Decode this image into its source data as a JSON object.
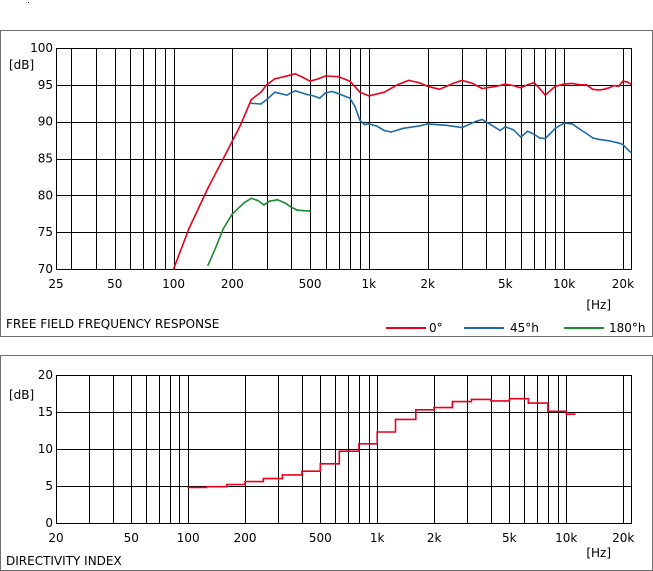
{
  "colors": {
    "red": "#e8001c",
    "blue": "#1e6aa8",
    "green": "#1a8a2e",
    "grid": "#000000",
    "frame": "#6e6e6e"
  },
  "chart_data": [
    {
      "type": "line",
      "title": "FREE FIELD FREQUENCY RESPONSE",
      "xlabel": "[Hz]",
      "ylabel": "[dB]",
      "xscale": "log",
      "xlim": [
        25,
        22000
      ],
      "ylim": [
        70,
        100
      ],
      "x_ticks": [
        25,
        50,
        100,
        200,
        500,
        1000,
        2000,
        5000,
        10000,
        20000
      ],
      "x_tick_labels": [
        "25",
        "50",
        "100",
        "200",
        "500",
        "1k",
        "2k",
        "5k",
        "10k",
        "20k"
      ],
      "y_ticks": [
        70,
        75,
        80,
        85,
        90,
        95,
        100
      ],
      "y_tick_labels": [
        "70",
        "75",
        "80",
        "85",
        "90",
        "95",
        "100"
      ],
      "grid": true,
      "legend_position": "bottom-right",
      "series": [
        {
          "name": "0°",
          "color": "#e8001c",
          "points": [
            [
              100,
              70
            ],
            [
              120,
              75.5
            ],
            [
              150,
              81
            ],
            [
              180,
              85
            ],
            [
              220,
              89.5
            ],
            [
              250,
              93
            ],
            [
              280,
              94
            ],
            [
              300,
              95
            ],
            [
              330,
              95.8
            ],
            [
              380,
              96.2
            ],
            [
              420,
              96.5
            ],
            [
              460,
              96
            ],
            [
              500,
              95.5
            ],
            [
              550,
              95.8
            ],
            [
              600,
              96.2
            ],
            [
              700,
              96.1
            ],
            [
              800,
              95.5
            ],
            [
              900,
              94
            ],
            [
              1000,
              93.5
            ],
            [
              1200,
              94
            ],
            [
              1400,
              95
            ],
            [
              1600,
              95.6
            ],
            [
              1800,
              95.3
            ],
            [
              2000,
              94.8
            ],
            [
              2300,
              94.4
            ],
            [
              2700,
              95.2
            ],
            [
              3000,
              95.6
            ],
            [
              3400,
              95.2
            ],
            [
              3800,
              94.5
            ],
            [
              4500,
              94.8
            ],
            [
              5000,
              95.1
            ],
            [
              5500,
              94.9
            ],
            [
              6000,
              94.6
            ],
            [
              6500,
              95
            ],
            [
              7000,
              95.3
            ],
            [
              7500,
              94.5
            ],
            [
              8000,
              93.6
            ],
            [
              8500,
              94.2
            ],
            [
              9000,
              94.8
            ],
            [
              10000,
              95.1
            ],
            [
              11000,
              95.2
            ],
            [
              12000,
              95
            ],
            [
              13000,
              95
            ],
            [
              14000,
              94.4
            ],
            [
              15000,
              94.3
            ],
            [
              16000,
              94.4
            ],
            [
              17000,
              94.6
            ],
            [
              18000,
              94.9
            ],
            [
              19000,
              94.8
            ],
            [
              20000,
              95.5
            ],
            [
              21000,
              95.4
            ],
            [
              22000,
              95.1
            ]
          ]
        },
        {
          "name": "45°h",
          "color": "#1e6aa8",
          "points": [
            [
              250,
              92.5
            ],
            [
              280,
              92.4
            ],
            [
              300,
              93
            ],
            [
              330,
              94
            ],
            [
              380,
              93.6
            ],
            [
              420,
              94.2
            ],
            [
              480,
              93.7
            ],
            [
              520,
              93.5
            ],
            [
              560,
              93.2
            ],
            [
              600,
              93.9
            ],
            [
              650,
              94.1
            ],
            [
              700,
              93.8
            ],
            [
              800,
              93.2
            ],
            [
              850,
              92
            ],
            [
              900,
              90.2
            ],
            [
              950,
              89.6
            ],
            [
              1000,
              89.7
            ],
            [
              1100,
              89.4
            ],
            [
              1200,
              88.8
            ],
            [
              1300,
              88.6
            ],
            [
              1500,
              89.1
            ],
            [
              1800,
              89.4
            ],
            [
              2000,
              89.7
            ],
            [
              2500,
              89.5
            ],
            [
              3000,
              89.2
            ],
            [
              3500,
              90
            ],
            [
              3800,
              90.3
            ],
            [
              4200,
              89.6
            ],
            [
              4700,
              88.8
            ],
            [
              5000,
              89.3
            ],
            [
              5500,
              88.9
            ],
            [
              6000,
              87.9
            ],
            [
              6500,
              88.7
            ],
            [
              7000,
              88.3
            ],
            [
              7500,
              87.8
            ],
            [
              8000,
              87.7
            ],
            [
              8500,
              88.4
            ],
            [
              9000,
              89.1
            ],
            [
              10000,
              89.8
            ],
            [
              11000,
              89.7
            ],
            [
              12000,
              89
            ],
            [
              13000,
              88.4
            ],
            [
              14000,
              87.8
            ],
            [
              15000,
              87.6
            ],
            [
              17000,
              87.4
            ],
            [
              19000,
              87.1
            ],
            [
              20000,
              86.9
            ],
            [
              21000,
              86.3
            ],
            [
              22000,
              85.8
            ]
          ]
        },
        {
          "name": "180°h",
          "color": "#1a8a2e",
          "points": [
            [
              150,
              70.5
            ],
            [
              165,
              73
            ],
            [
              180,
              75.5
            ],
            [
              200,
              77.5
            ],
            [
              230,
              79
            ],
            [
              250,
              79.6
            ],
            [
              270,
              79.3
            ],
            [
              290,
              78.7
            ],
            [
              310,
              79.2
            ],
            [
              340,
              79.4
            ],
            [
              370,
              79
            ],
            [
              400,
              78.4
            ],
            [
              430,
              78
            ],
            [
              470,
              77.9
            ],
            [
              500,
              77.9
            ]
          ]
        }
      ]
    },
    {
      "type": "line",
      "title": "DIRECTIVITY INDEX",
      "xlabel": "[Hz]",
      "ylabel": "[dB]",
      "xscale": "log",
      "xlim": [
        20,
        22000
      ],
      "ylim": [
        0,
        20
      ],
      "x_ticks": [
        20,
        50,
        100,
        200,
        500,
        1000,
        2000,
        5000,
        10000,
        20000
      ],
      "x_tick_labels": [
        "20",
        "50",
        "100",
        "200",
        "500",
        "1k",
        "2k",
        "5k",
        "10k",
        "20k"
      ],
      "y_ticks": [
        0,
        5,
        10,
        15,
        20
      ],
      "y_tick_labels": [
        "0",
        "5",
        "10",
        "15",
        "20"
      ],
      "grid": true,
      "series": [
        {
          "name": "",
          "color": "#e8001c",
          "step_points": [
            [
              100,
              4.8
            ],
            [
              125,
              4.9
            ],
            [
              160,
              5.2
            ],
            [
              200,
              5.6
            ],
            [
              250,
              6
            ],
            [
              315,
              6.5
            ],
            [
              400,
              7
            ],
            [
              500,
              8
            ],
            [
              630,
              9.7
            ],
            [
              800,
              10.7
            ],
            [
              1000,
              12.3
            ],
            [
              1250,
              14
            ],
            [
              1600,
              15.3
            ],
            [
              2000,
              15.6
            ],
            [
              2500,
              16.4
            ],
            [
              3150,
              16.7
            ],
            [
              4000,
              16.5
            ],
            [
              5000,
              16.8
            ],
            [
              6300,
              16.2
            ],
            [
              8000,
              15.1
            ],
            [
              10000,
              14.7
            ]
          ],
          "end_x": 11200
        }
      ]
    }
  ]
}
